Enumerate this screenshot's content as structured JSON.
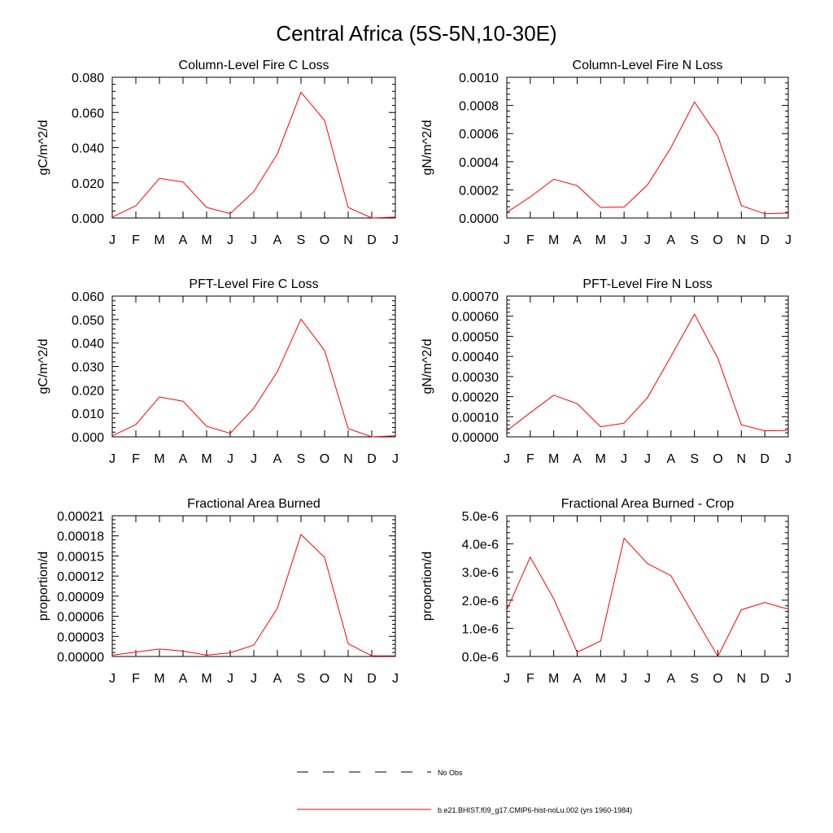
{
  "page_title": "Central Africa (5S-5N,10-30E)",
  "colors": {
    "model": "#ff0000",
    "obs": "#000000",
    "axis": "#000000"
  },
  "legend": {
    "entries": [
      {
        "label": "No Obs",
        "style": "dashed",
        "color": "#000000"
      },
      {
        "label": "b.e21.BHIST.f09_g17.CMIP6-hist-noLu.002 (yrs 1960-1984)",
        "style": "solid",
        "color": "#ff0000"
      }
    ]
  },
  "chart_data": [
    {
      "type": "line",
      "title": "Column-Level Fire C Loss",
      "ylabel": "gC/m^2/d",
      "categories": [
        "J",
        "F",
        "M",
        "A",
        "M",
        "J",
        "J",
        "A",
        "S",
        "O",
        "N",
        "D",
        "J"
      ],
      "ylim": [
        0,
        0.08
      ],
      "yticks": [
        0,
        0.02,
        0.04,
        0.06,
        0.08
      ],
      "ytick_labels": [
        "0.000",
        "0.020",
        "0.040",
        "0.060",
        "0.080"
      ],
      "series": [
        {
          "values": [
            0.0005,
            0.007,
            0.0225,
            0.0205,
            0.006,
            0.0025,
            0.015,
            0.0365,
            0.0715,
            0.0555,
            0.006,
            0.0,
            0.0005
          ]
        }
      ]
    },
    {
      "type": "line",
      "title": "Column-Level Fire N Loss",
      "ylabel": "gN/m^2/d",
      "categories": [
        "J",
        "F",
        "M",
        "A",
        "M",
        "J",
        "J",
        "A",
        "S",
        "O",
        "N",
        "D",
        "J"
      ],
      "ylim": [
        0,
        0.001
      ],
      "yticks": [
        0,
        0.0002,
        0.0004,
        0.0006,
        0.0008,
        0.001
      ],
      "ytick_labels": [
        "0.0000",
        "0.0002",
        "0.0004",
        "0.0006",
        "0.0008",
        "0.0010"
      ],
      "series": [
        {
          "values": [
            4e-05,
            0.00015,
            0.000275,
            0.00023,
            7.5e-05,
            7.8e-05,
            0.000235,
            0.0005,
            0.000825,
            0.00058,
            8.8e-05,
            3e-05,
            3.5e-05
          ]
        }
      ]
    },
    {
      "type": "line",
      "title": "PFT-Level Fire C Loss",
      "ylabel": "gC/m^2/d",
      "categories": [
        "J",
        "F",
        "M",
        "A",
        "M",
        "J",
        "J",
        "A",
        "S",
        "O",
        "N",
        "D",
        "J"
      ],
      "ylim": [
        0,
        0.06
      ],
      "yticks": [
        0,
        0.01,
        0.02,
        0.03,
        0.04,
        0.05,
        0.06
      ],
      "ytick_labels": [
        "0.000",
        "0.010",
        "0.020",
        "0.030",
        "0.040",
        "0.050",
        "0.060"
      ],
      "series": [
        {
          "values": [
            0.0004,
            0.0052,
            0.017,
            0.0152,
            0.0045,
            0.0015,
            0.0122,
            0.0278,
            0.0502,
            0.0368,
            0.0035,
            0.0,
            0.0004
          ]
        }
      ]
    },
    {
      "type": "line",
      "title": "PFT-Level Fire N Loss",
      "ylabel": "gN/m^2/d",
      "categories": [
        "J",
        "F",
        "M",
        "A",
        "M",
        "J",
        "J",
        "A",
        "S",
        "O",
        "N",
        "D",
        "J"
      ],
      "ylim": [
        0,
        0.0007
      ],
      "yticks": [
        0,
        0.0001,
        0.0002,
        0.0003,
        0.0004,
        0.0005,
        0.0006,
        0.0007
      ],
      "ytick_labels": [
        "0.00000",
        "0.00010",
        "0.00020",
        "0.00030",
        "0.00040",
        "0.00050",
        "0.00060",
        "0.00070"
      ],
      "series": [
        {
          "values": [
            3e-05,
            0.00012,
            0.000207,
            0.000165,
            5e-05,
            6.8e-05,
            0.000195,
            0.0004,
            0.00061,
            0.00039,
            6e-05,
            3e-05,
            3.2e-05
          ]
        }
      ]
    },
    {
      "type": "line",
      "title": "Fractional Area Burned",
      "ylabel": "proportion/d",
      "categories": [
        "J",
        "F",
        "M",
        "A",
        "M",
        "J",
        "J",
        "A",
        "S",
        "O",
        "N",
        "D",
        "J"
      ],
      "ylim": [
        0,
        0.00021
      ],
      "yticks": [
        0,
        3e-05,
        6e-05,
        9e-05,
        0.00012,
        0.00015,
        0.00018,
        0.00021
      ],
      "ytick_labels": [
        "0.00000",
        "0.00003",
        "0.00006",
        "0.00009",
        "0.00012",
        "0.00015",
        "0.00018",
        "0.00021"
      ],
      "series": [
        {
          "values": [
            2e-06,
            6.5e-06,
            1.1e-05,
            8e-06,
            2e-06,
            5.5e-06,
            1.7e-05,
            7.2e-05,
            0.000182,
            0.000148,
            1.9e-05,
            1e-06,
            1e-06
          ]
        }
      ]
    },
    {
      "type": "line",
      "title": "Fractional Area Burned - Crop",
      "ylabel": "proportion/d",
      "categories": [
        "J",
        "F",
        "M",
        "A",
        "M",
        "J",
        "J",
        "A",
        "S",
        "O",
        "N",
        "D",
        "J"
      ],
      "ylim": [
        0,
        5e-06
      ],
      "yticks": [
        0,
        1e-06,
        2e-06,
        3e-06,
        4e-06,
        5e-06
      ],
      "ytick_labels": [
        "0.0e-6",
        "1.0e-6",
        "2.0e-6",
        "3.0e-6",
        "4.0e-6",
        "5.0e-6"
      ],
      "series": [
        {
          "values": [
            1.65e-06,
            3.53e-06,
            2.05e-06,
            1.5e-07,
            5.5e-07,
            4.2e-06,
            3.3e-06,
            2.87e-06,
            1.42e-06,
            0.0,
            1.66e-06,
            1.92e-06,
            1.68e-06
          ]
        }
      ]
    }
  ]
}
